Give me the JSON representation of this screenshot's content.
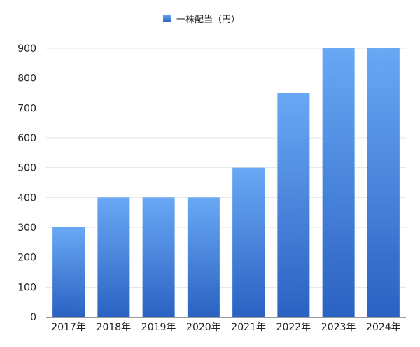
{
  "chart_data": {
    "type": "bar",
    "title": "",
    "xlabel": "",
    "ylabel": "",
    "categories": [
      "2017年",
      "2018年",
      "2019年",
      "2020年",
      "2021年",
      "2022年",
      "2023年",
      "2024年"
    ],
    "series": [
      {
        "name": "一株配当（円）",
        "values": [
          300,
          400,
          400,
          400,
          500,
          750,
          900,
          900
        ],
        "color_top": "#6aa8f5",
        "color_bottom": "#2a62c2"
      }
    ],
    "ylim": [
      0,
      900
    ],
    "yticks": [
      0,
      100,
      200,
      300,
      400,
      500,
      600,
      700,
      800,
      900
    ],
    "grid": true,
    "legend_position": "top"
  }
}
